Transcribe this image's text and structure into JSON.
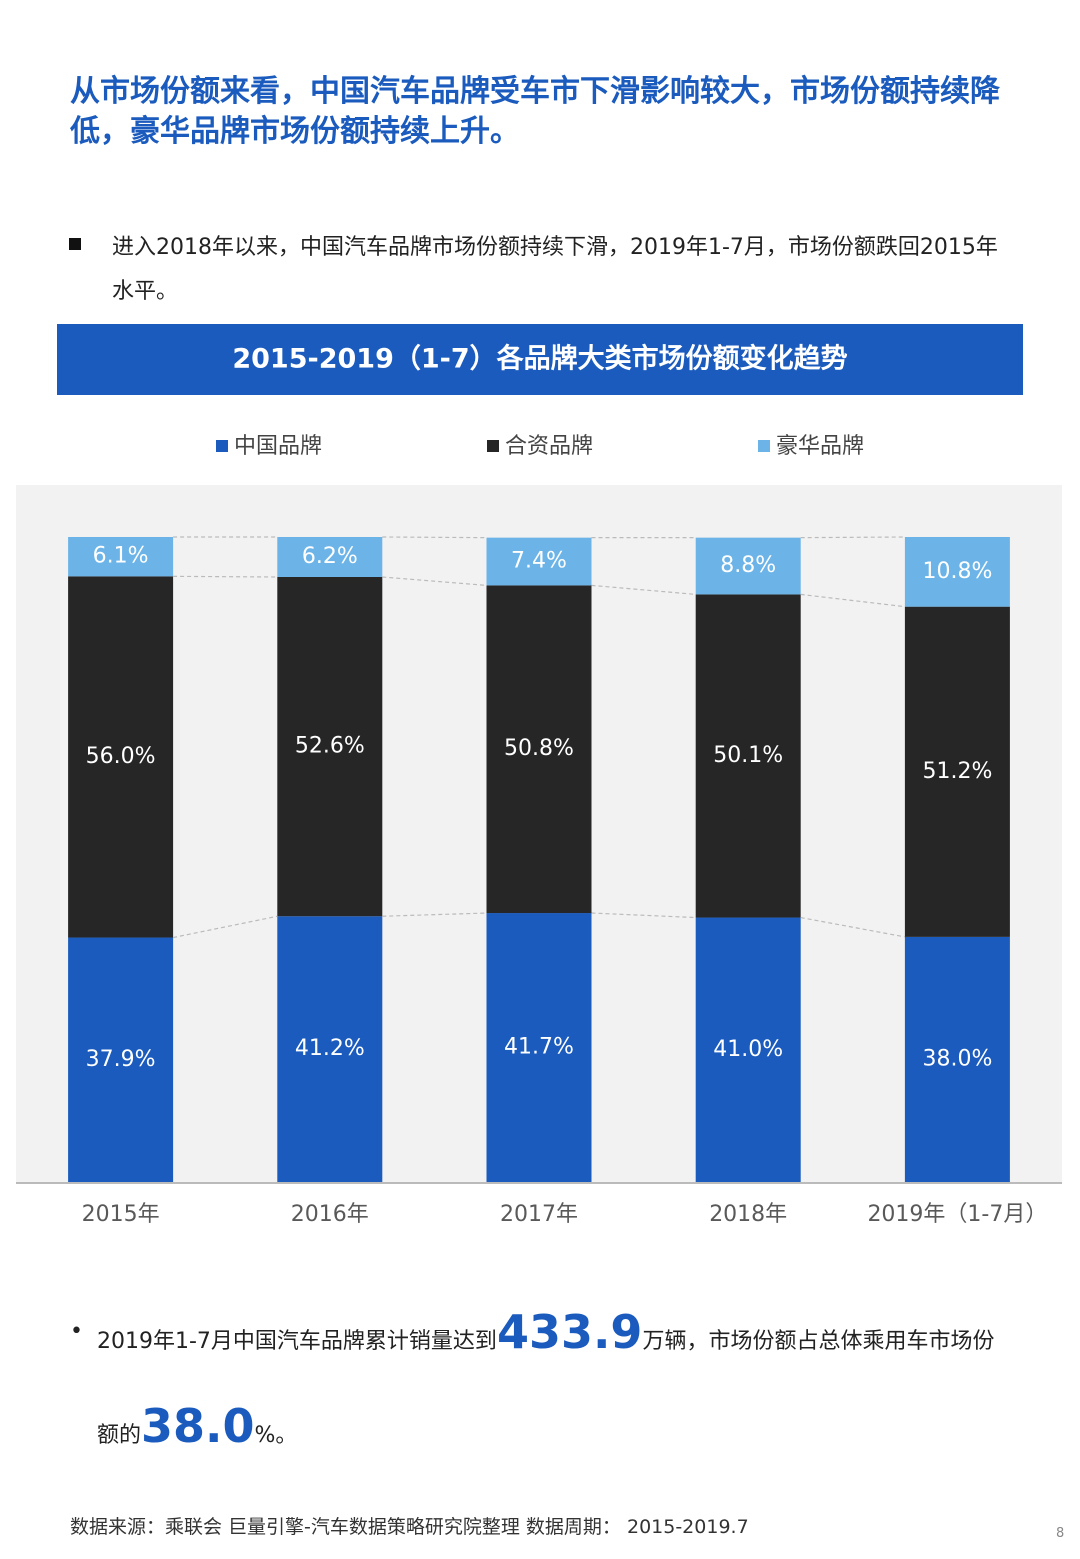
{
  "headline": "从市场份额来看，中国汽车品牌受车市下滑影响较大，市场份额持续降低，豪华品牌市场份额持续上升。",
  "bullet1": "进入2018年以来，中国汽车品牌市场份额持续下滑，2019年1-7月，市场份额跌回2015年水平。",
  "chart_data": {
    "type": "bar",
    "stacked": true,
    "title": "2015-2019（1-7）各品牌大类市场份额变化趋势",
    "categories": [
      "2015年",
      "2016年",
      "2017年",
      "2018年",
      "2019年（1-7月）"
    ],
    "series": [
      {
        "name": "中国品牌",
        "color": "#1a5bbd",
        "values": [
          37.9,
          41.2,
          41.7,
          41.0,
          38.0
        ],
        "value_labels": [
          "37.9%",
          "41.2%",
          "41.7%",
          "41.0%",
          "38.0%"
        ]
      },
      {
        "name": "合资品牌",
        "color": "#262626",
        "values": [
          56.0,
          52.6,
          50.8,
          50.1,
          51.2
        ],
        "value_labels": [
          "56.0%",
          "52.6%",
          "50.8%",
          "50.1%",
          "51.2%"
        ]
      },
      {
        "name": "豪华品牌",
        "color": "#6cb4e8",
        "values": [
          6.1,
          6.2,
          7.4,
          8.8,
          10.8
        ],
        "value_labels": [
          "6.1%",
          "6.2%",
          "7.4%",
          "8.8%",
          "10.8%"
        ]
      }
    ]
  },
  "bullet2": {
    "before": "2019年1-7月中国汽车品牌累计销量达到",
    "sales": "433.9",
    "middle": "万辆，市场份额占总体乘用车市场份额的",
    "share": "38.0",
    "after": "%。"
  },
  "source": "数据来源：乘联会  巨量引擎-汽车数据策略研究院整理  数据周期： 2015-2019.7",
  "page_number": "8"
}
